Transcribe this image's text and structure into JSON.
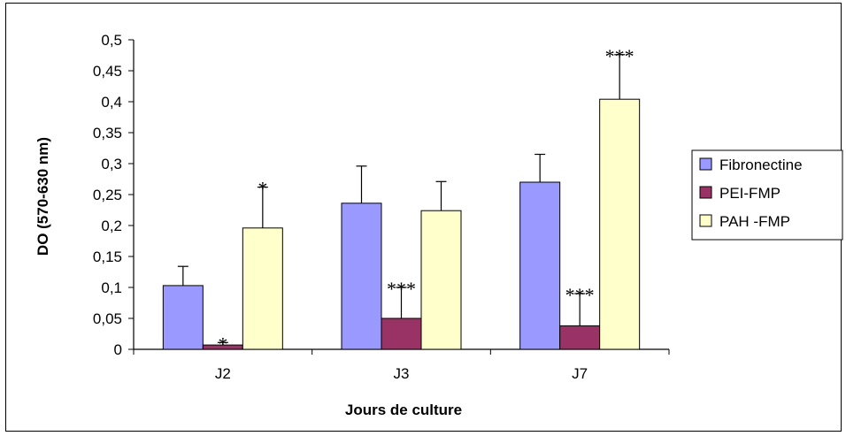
{
  "chart_data": {
    "type": "bar",
    "title": "",
    "xlabel": "Jours de culture",
    "ylabel": "DO (570-630 nm)",
    "ylim": [
      0,
      0.5
    ],
    "yticks": [
      "0",
      "0,05",
      "0,1",
      "0,15",
      "0,2",
      "0,25",
      "0,3",
      "0,35",
      "0,4",
      "0,45",
      "0,5"
    ],
    "categories": [
      "J2",
      "J3",
      "J7"
    ],
    "series": [
      {
        "name": "Fibronectine",
        "color": "#9999ff",
        "values": [
          0.103,
          0.236,
          0.27
        ],
        "errors": [
          0.031,
          0.06,
          0.045
        ],
        "significance": [
          "",
          "",
          ""
        ]
      },
      {
        "name": "PEI-FMP",
        "color": "#993366",
        "values": [
          0.007,
          0.05,
          0.038
        ],
        "errors": [
          0.004,
          0.05,
          0.052
        ],
        "significance": [
          "*",
          "***",
          "***"
        ]
      },
      {
        "name": "PAH -FMP",
        "color": "#ffffcc",
        "values": [
          0.196,
          0.224,
          0.404
        ],
        "errors": [
          0.066,
          0.047,
          0.072
        ],
        "significance": [
          "*",
          "",
          "***"
        ]
      }
    ],
    "legend_position": "right",
    "grid": false
  }
}
